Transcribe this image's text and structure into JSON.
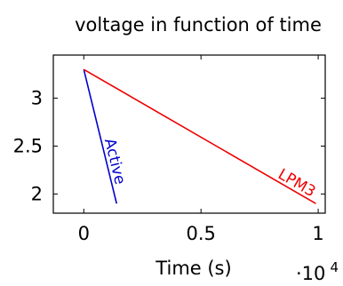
{
  "chart_data": {
    "type": "line",
    "title": "voltage in function of time",
    "xlabel": "Time (s)",
    "ylabel": "",
    "x_scale_label": {
      "base": "·10",
      "exponent": "4"
    },
    "xlim": [
      -1300,
      10300
    ],
    "ylim": [
      1.8,
      3.45
    ],
    "x_ticks": [
      {
        "value": 0,
        "label": "0"
      },
      {
        "value": 5000,
        "label": "0.5"
      },
      {
        "value": 10000,
        "label": "1"
      }
    ],
    "y_ticks": [
      {
        "value": 2,
        "label": "2"
      },
      {
        "value": 2.5,
        "label": "2.5"
      },
      {
        "value": 3,
        "label": "3"
      }
    ],
    "grid": false,
    "legend": "none",
    "series": [
      {
        "name": "Active",
        "color": "#0000cc",
        "x": [
          0,
          1400
        ],
        "y": [
          3.3,
          1.9
        ]
      },
      {
        "name": "LPM3",
        "color": "#ee0000",
        "x": [
          0,
          9900
        ],
        "y": [
          3.3,
          1.9
        ]
      }
    ]
  }
}
